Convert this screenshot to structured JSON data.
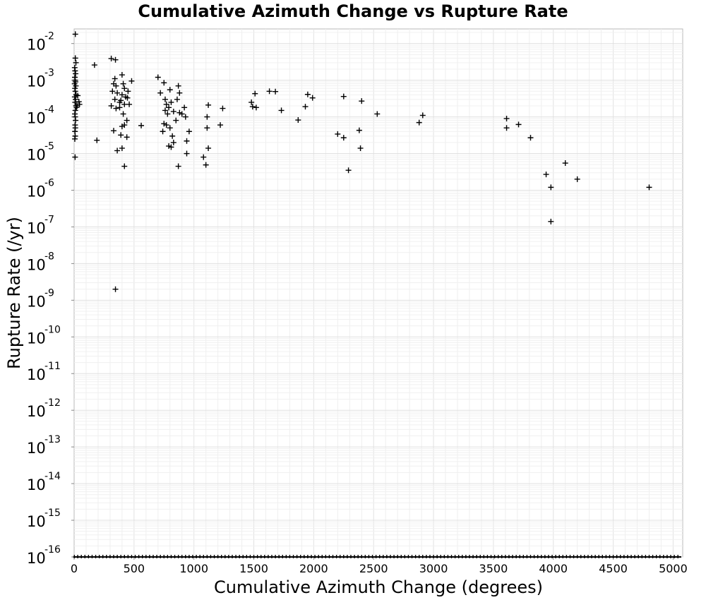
{
  "chart_data": {
    "type": "scatter",
    "title": "Cumulative Azimuth Change vs Rupture Rate",
    "xlabel": "Cumulative Azimuth Change (degrees)",
    "ylabel": "Rupture Rate (/yr)",
    "xlim": [
      0,
      5080
    ],
    "ylim": [
      1e-16,
      0.025
    ],
    "yscale": "log",
    "grid": true,
    "marker": "plus",
    "marker_color": "#000000",
    "x_ticks": [
      0,
      500,
      1000,
      1500,
      2000,
      2500,
      3000,
      3500,
      4000,
      4500,
      5000
    ],
    "x_tick_labels": [
      "0",
      "500",
      "1000",
      "1500",
      "2000",
      "2500",
      "3000",
      "3500",
      "4000",
      "4500",
      "5000"
    ],
    "y_tick_exponents": [
      -16,
      -15,
      -14,
      -13,
      -12,
      -11,
      -10,
      -9,
      -8,
      -7,
      -6,
      -5,
      -4,
      -3,
      -2
    ],
    "y_tick_base": "10",
    "points": [
      [
        10,
        0.018
      ],
      [
        10,
        0.004
      ],
      [
        15,
        0.003
      ],
      [
        5,
        0.0022
      ],
      [
        8,
        0.0018
      ],
      [
        12,
        0.0015
      ],
      [
        6,
        0.0012
      ],
      [
        9,
        0.001
      ],
      [
        11,
        0.0009
      ],
      [
        4,
        0.0008
      ],
      [
        14,
        0.0007
      ],
      [
        7,
        0.0006
      ],
      [
        10,
        0.0005
      ],
      [
        16,
        0.0004
      ],
      [
        5,
        0.00035
      ],
      [
        12,
        0.0003
      ],
      [
        8,
        0.00025
      ],
      [
        15,
        0.0002
      ],
      [
        20,
        0.00018
      ],
      [
        10,
        0.00015
      ],
      [
        6,
        0.00012
      ],
      [
        9,
        0.0001
      ],
      [
        12,
        8e-05
      ],
      [
        8,
        6e-05
      ],
      [
        10,
        5e-05
      ],
      [
        7,
        4e-05
      ],
      [
        9,
        3e-05
      ],
      [
        6,
        2.5e-05
      ],
      [
        8,
        8e-06
      ],
      [
        30,
        0.00038
      ],
      [
        40,
        0.00026
      ],
      [
        45,
        0.00022
      ],
      [
        25,
        0.0002
      ],
      [
        170,
        0.0026
      ],
      [
        190,
        2.3e-05
      ],
      [
        310,
        0.0039
      ],
      [
        345,
        0.0036
      ],
      [
        340,
        0.0011
      ],
      [
        330,
        0.0008
      ],
      [
        350,
        0.0007
      ],
      [
        320,
        0.0005
      ],
      [
        360,
        0.00045
      ],
      [
        340,
        0.0003
      ],
      [
        380,
        0.00025
      ],
      [
        310,
        0.0002
      ],
      [
        350,
        0.00017
      ],
      [
        330,
        4.2e-05
      ],
      [
        360,
        1.2e-05
      ],
      [
        400,
        0.0014
      ],
      [
        410,
        0.0008
      ],
      [
        420,
        0.0006
      ],
      [
        400,
        0.0004
      ],
      [
        430,
        0.00035
      ],
      [
        390,
        0.00028
      ],
      [
        420,
        0.00022
      ],
      [
        380,
        0.00018
      ],
      [
        410,
        0.00012
      ],
      [
        440,
        8e-05
      ],
      [
        400,
        5.5e-05
      ],
      [
        420,
        6e-05
      ],
      [
        390,
        3.2e-05
      ],
      [
        440,
        2.8e-05
      ],
      [
        400,
        1.4e-05
      ],
      [
        420,
        4.5e-06
      ],
      [
        450,
        0.0005
      ],
      [
        460,
        0.00022
      ],
      [
        480,
        0.00095
      ],
      [
        445,
        0.00033
      ],
      [
        345,
        2e-09
      ],
      [
        560,
        5.8e-05
      ],
      [
        700,
        0.0012
      ],
      [
        720,
        0.00045
      ],
      [
        750,
        0.00085
      ],
      [
        760,
        0.0003
      ],
      [
        770,
        0.00022
      ],
      [
        790,
        0.00018
      ],
      [
        800,
        0.00055
      ],
      [
        760,
        0.00015
      ],
      [
        780,
        0.00012
      ],
      [
        750,
        6.5e-05
      ],
      [
        770,
        6e-05
      ],
      [
        740,
        4e-05
      ],
      [
        800,
        5e-05
      ],
      [
        810,
        0.00025
      ],
      [
        830,
        0.00014
      ],
      [
        790,
        1.6e-05
      ],
      [
        810,
        1.5e-05
      ],
      [
        830,
        2e-05
      ],
      [
        850,
        8e-05
      ],
      [
        820,
        3e-05
      ],
      [
        870,
        0.0007
      ],
      [
        880,
        0.00045
      ],
      [
        860,
        0.0003
      ],
      [
        880,
        0.00013
      ],
      [
        900,
        0.00012
      ],
      [
        920,
        0.00018
      ],
      [
        930,
        0.0001
      ],
      [
        940,
        2.2e-05
      ],
      [
        940,
        1e-05
      ],
      [
        960,
        4e-05
      ],
      [
        870,
        4.5e-06
      ],
      [
        1080,
        8e-06
      ],
      [
        1110,
        0.0001
      ],
      [
        1110,
        5e-05
      ],
      [
        1120,
        1.4e-05
      ],
      [
        1100,
        4.9e-06
      ],
      [
        1120,
        0.00021
      ],
      [
        1220,
        6e-05
      ],
      [
        1240,
        0.00017
      ],
      [
        1480,
        0.00025
      ],
      [
        1490,
        0.00019
      ],
      [
        1520,
        0.00018
      ],
      [
        1510,
        0.00043
      ],
      [
        1630,
        0.0005
      ],
      [
        1680,
        0.00049
      ],
      [
        1730,
        0.00015
      ],
      [
        1870,
        8.2e-05
      ],
      [
        1930,
        0.00019
      ],
      [
        1950,
        0.00041
      ],
      [
        1990,
        0.00033
      ],
      [
        2200,
        3.4e-05
      ],
      [
        2250,
        2.7e-05
      ],
      [
        2250,
        0.00036
      ],
      [
        2290,
        3.5e-06
      ],
      [
        2380,
        4.3e-05
      ],
      [
        2390,
        1.4e-05
      ],
      [
        2400,
        0.00027
      ],
      [
        2530,
        0.00012
      ],
      [
        2880,
        7e-05
      ],
      [
        2910,
        0.00011
      ],
      [
        3610,
        9e-05
      ],
      [
        3610,
        5e-05
      ],
      [
        3710,
        6.2e-05
      ],
      [
        3810,
        2.7e-05
      ],
      [
        3940,
        2.7e-06
      ],
      [
        3980,
        1.2e-06
      ],
      [
        3980,
        1.4e-07
      ],
      [
        4100,
        5.5e-06
      ],
      [
        4200,
        2e-06
      ],
      [
        4800,
        1.2e-06
      ]
    ],
    "floor_points_x": [
      2,
      30,
      60,
      90,
      120,
      150,
      180,
      210,
      240,
      270,
      300,
      330,
      360,
      390,
      420,
      450,
      480,
      510,
      540,
      570,
      600,
      630,
      660,
      690,
      720,
      750,
      780,
      810,
      840,
      870,
      900,
      930,
      960,
      990,
      1020,
      1050,
      1080,
      1110,
      1140,
      1170,
      1200,
      1230,
      1260,
      1290,
      1320,
      1350,
      1380,
      1410,
      1440,
      1470,
      1500,
      1530,
      1560,
      1590,
      1620,
      1650,
      1680,
      1710,
      1740,
      1770,
      1800,
      1830,
      1860,
      1890,
      1920,
      1950,
      1980,
      2010,
      2040,
      2070,
      2100,
      2130,
      2160,
      2190,
      2220,
      2250,
      2280,
      2310,
      2340,
      2370,
      2400,
      2430,
      2460,
      2490,
      2520,
      2550,
      2580,
      2610,
      2640,
      2670,
      2700,
      2730,
      2760,
      2790,
      2820,
      2850,
      2880,
      2910,
      2940,
      2970,
      3000,
      3030,
      3060,
      3090,
      3120,
      3150,
      3180,
      3210,
      3240,
      3270,
      3300,
      3330,
      3360,
      3390,
      3420,
      3450,
      3480,
      3510,
      3540,
      3570,
      3600,
      3630,
      3660,
      3690,
      3720,
      3750,
      3780,
      3810,
      3840,
      3870,
      3900,
      3930,
      3960,
      3990,
      4020,
      4050,
      4080,
      4110,
      4140,
      4170,
      4200,
      4230,
      4260,
      4290,
      4320,
      4350,
      4380,
      4410,
      4440,
      4470,
      4500,
      4530,
      4560,
      4590,
      4620,
      4650,
      4680,
      4710,
      4740,
      4770,
      4800,
      4830,
      4860,
      4890,
      4920,
      4950,
      4980,
      5010,
      5040
    ],
    "floor_value": 1e-16
  }
}
